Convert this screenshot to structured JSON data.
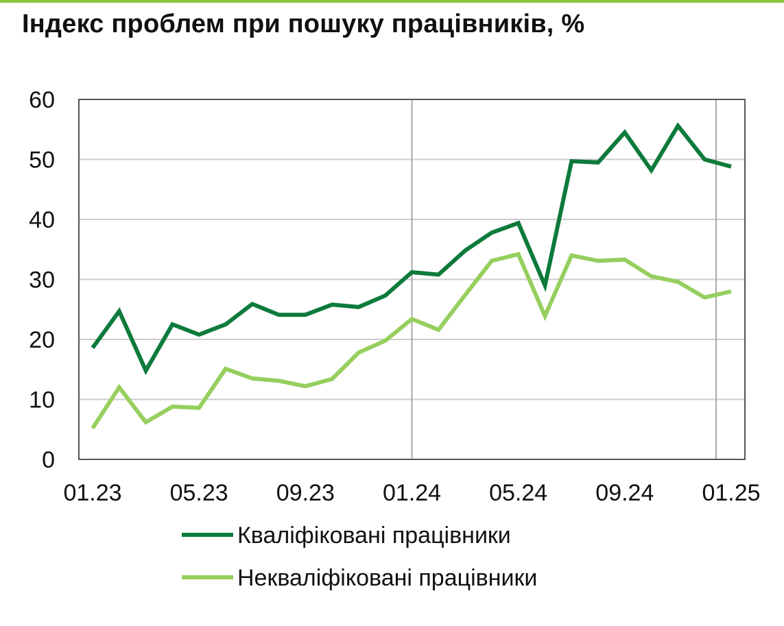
{
  "colors": {
    "accent_rule": "#8cc540",
    "qualified": "#0d7a3c",
    "unqualified": "#96cf5e",
    "grid": "#cccccc",
    "axis": "#555555",
    "year_divider": "#a8a8a8"
  },
  "chart_data": {
    "type": "line",
    "title": "Індекс проблем при пошуку працівників, %",
    "xlabel": "",
    "ylabel": "",
    "ylim": [
      0,
      60
    ],
    "yticks": [
      "0",
      "10",
      "20",
      "30",
      "40",
      "50",
      "60"
    ],
    "grid": "horizontal",
    "legend_position": "bottom",
    "x": [
      "01.23",
      "02.23",
      "03.23",
      "04.23",
      "05.23",
      "06.23",
      "07.23",
      "08.23",
      "09.23",
      "10.23",
      "11.23",
      "12.23",
      "01.24",
      "02.24",
      "03.24",
      "04.24",
      "05.24",
      "06.24",
      "07.24",
      "08.24",
      "09.24",
      "10.24",
      "11.24",
      "12.24",
      "01.25"
    ],
    "xtick_labels": [
      "01.23",
      "05.23",
      "09.23",
      "01.24",
      "05.24",
      "09.24",
      "01.25"
    ],
    "year_dividers": [
      "01.24",
      "01.25"
    ],
    "series": [
      {
        "name": "Кваліфіковані працівники",
        "color_key": "qualified",
        "values": [
          18.6,
          24.7,
          14.8,
          22.5,
          20.8,
          22.5,
          25.9,
          24.1,
          24.1,
          25.8,
          25.4,
          27.3,
          31.2,
          30.8,
          34.8,
          37.8,
          39.4,
          29.0,
          49.7,
          49.5,
          54.5,
          48.2,
          55.6,
          50.0,
          48.8
        ]
      },
      {
        "name": "Некваліфіковані працівники",
        "color_key": "unqualified",
        "values": [
          5.2,
          12.0,
          6.2,
          8.8,
          8.6,
          15.1,
          13.5,
          13.1,
          12.2,
          13.4,
          17.8,
          19.8,
          23.4,
          21.6,
          27.4,
          33.1,
          34.2,
          23.9,
          34.0,
          33.1,
          33.3,
          30.5,
          29.6,
          27.0,
          28.0
        ]
      }
    ]
  }
}
